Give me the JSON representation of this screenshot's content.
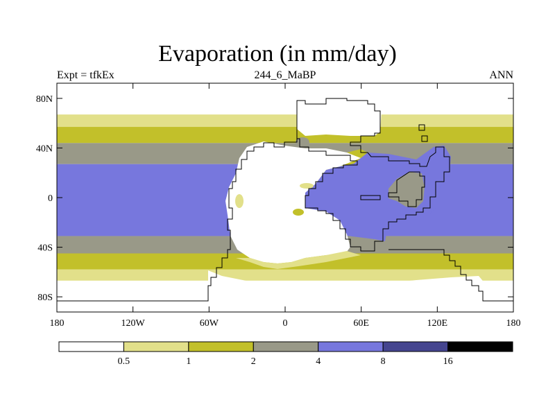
{
  "title": "Evaporation (in mm/day)",
  "left_label": "Expt = tfkEx",
  "center_label": "244_6_MaBP",
  "right_label": "ANN",
  "lat_ticks": [
    "80N",
    "40N",
    "0",
    "40S",
    "80S"
  ],
  "lon_ticks": [
    "180",
    "120W",
    "60W",
    "0",
    "60E",
    "120E",
    "180"
  ],
  "colorbar": {
    "colors": [
      "#ffffff",
      "#e2e08a",
      "#c2c02a",
      "#999988",
      "#7777dd",
      "#45458f",
      "#000000"
    ],
    "labels": [
      "0.5",
      "1",
      "2",
      "4",
      "8",
      "16"
    ]
  },
  "chart_data": {
    "type": "heatmap",
    "title": "Evaporation (in mm/day)",
    "subtitle": "244_6_MaBP",
    "left_label": "Expt = tfkEx",
    "right_label": "ANN",
    "x_ticks": [
      "180",
      "120W",
      "60W",
      "0",
      "60E",
      "120E",
      "180"
    ],
    "y_ticks": [
      "80N",
      "40N",
      "0",
      "40S",
      "80S"
    ],
    "xlim": [
      -180,
      180
    ],
    "ylim": [
      -90,
      90
    ],
    "contour_levels": [
      0.5,
      1,
      2,
      4,
      8,
      16
    ],
    "level_colors": [
      "#ffffff",
      "#e2e08a",
      "#c2c02a",
      "#999988",
      "#7777dd",
      "#45458f",
      "#000000"
    ],
    "ocean_zonal_bands": [
      {
        "lat_range": [
          67,
          90
        ],
        "min_value": 0,
        "max_value": 0.5
      },
      {
        "lat_range": [
          57,
          67
        ],
        "min_value": 0.5,
        "max_value": 1
      },
      {
        "lat_range": [
          44,
          57
        ],
        "min_value": 1,
        "max_value": 2
      },
      {
        "lat_range": [
          27,
          44
        ],
        "min_value": 2,
        "max_value": 4
      },
      {
        "lat_range": [
          -31,
          27
        ],
        "min_value": 4,
        "max_value": 8
      },
      {
        "lat_range": [
          -45,
          -31
        ],
        "min_value": 2,
        "max_value": 4
      },
      {
        "lat_range": [
          -58,
          -45
        ],
        "min_value": 1,
        "max_value": 2
      },
      {
        "lat_range": [
          -67,
          -58
        ],
        "min_value": 0.5,
        "max_value": 1
      },
      {
        "lat_range": [
          -90,
          -67
        ],
        "min_value": 0,
        "max_value": 0.5
      }
    ],
    "land_interior_value_range": [
      0,
      0.5
    ]
  }
}
